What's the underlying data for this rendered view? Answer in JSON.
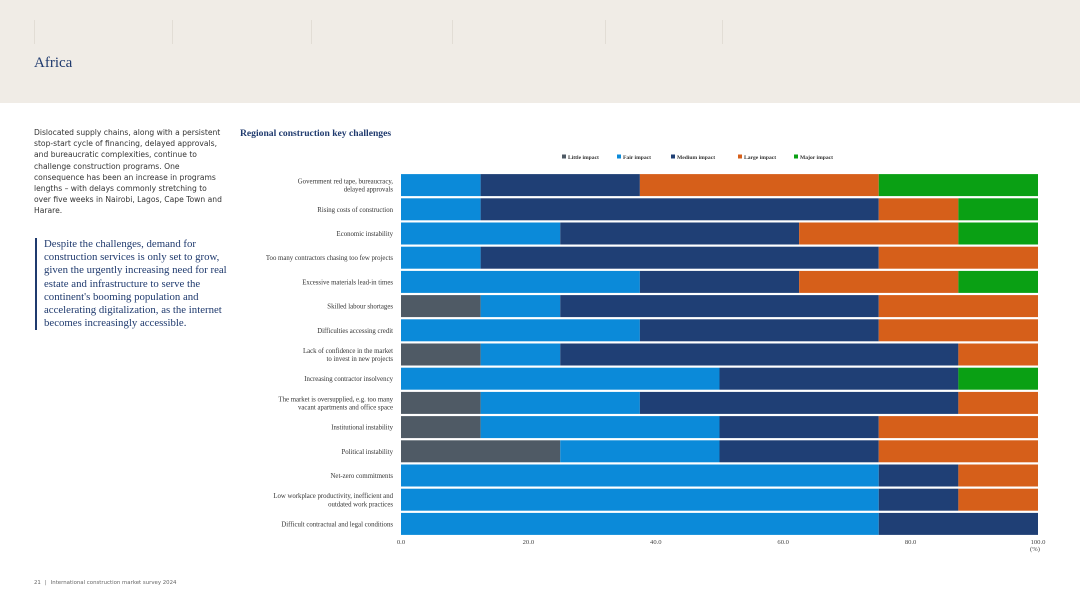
{
  "header": {
    "title": "Africa"
  },
  "intro_text": "Dislocated supply chains, along with a persistent stop-start cycle of financing, delayed approvals, and bureaucratic complexities, continue to challenge construction programs. One consequence has been an increase in programs lengths – with delays commonly stretching to over five weeks in Nairobi, Lagos, Cape Town and Harare.",
  "pull_quote": "Despite the challenges, demand for construction services is only set to grow, given the urgently increasing need for real estate and infrastructure to serve the continent's booming population and accelerating digitalization, as the internet becomes increasingly accessible.",
  "footer": {
    "page_number": "21",
    "separator": "|",
    "publication": "International construction market survey 2024"
  },
  "chart_data": {
    "type": "bar",
    "orientation": "horizontal",
    "stacked": true,
    "title": "Regional construction key challenges",
    "xlabel": "(%)",
    "xlim": [
      0,
      100
    ],
    "x_ticks": [
      "0.0",
      "20.0",
      "40.0",
      "60.0",
      "80.0",
      "100.0"
    ],
    "legend_position": "top",
    "categories": [
      [
        "Government red tape, bureaucracy,",
        "delayed approvals"
      ],
      [
        "Rising costs of construction"
      ],
      [
        "Economic instability"
      ],
      [
        "Too many contractors chasing too few projects"
      ],
      [
        "Excessive materials lead-in times"
      ],
      [
        "Skilled labour shortages"
      ],
      [
        "Difficulties accessing credit"
      ],
      [
        "Lack of confidence in the market",
        "to invest in new projects"
      ],
      [
        "Increasing contractor insolvency"
      ],
      [
        "The market is oversupplied, e.g. too many",
        "vacant apartments and office space"
      ],
      [
        "Institutional instability"
      ],
      [
        "Political instability"
      ],
      [
        "Net-zero commitments"
      ],
      [
        "Low workplace productivity, inefficient and",
        "outdated work practices"
      ],
      [
        "Difficult contractual and legal conditions"
      ]
    ],
    "series": [
      {
        "name": "Little impact",
        "color": "#4f5a65",
        "values": [
          0,
          0,
          0,
          0,
          0,
          12.5,
          0,
          12.5,
          0,
          12.5,
          12.5,
          25,
          0,
          0,
          0
        ]
      },
      {
        "name": "Fair impact",
        "color": "#0b8ad9",
        "values": [
          12.5,
          12.5,
          25,
          12.5,
          37.5,
          12.5,
          37.5,
          12.5,
          50,
          25,
          37.5,
          25,
          75,
          75,
          75
        ]
      },
      {
        "name": "Medium impact",
        "color": "#1f3f75",
        "values": [
          25,
          62.5,
          37.5,
          62.5,
          25,
          50,
          37.5,
          62.5,
          37.5,
          50,
          25,
          25,
          12.5,
          12.5,
          25
        ]
      },
      {
        "name": "Large impact",
        "color": "#d65f1a",
        "values": [
          37.5,
          12.5,
          25,
          25,
          25,
          25,
          25,
          12.5,
          0,
          12.5,
          25,
          25,
          12.5,
          12.5,
          0
        ]
      },
      {
        "name": "Major impact",
        "color": "#0aa014",
        "values": [
          25,
          12.5,
          12.5,
          0,
          12.5,
          0,
          0,
          0,
          12.5,
          0,
          0,
          0,
          0,
          0,
          0
        ]
      }
    ]
  }
}
